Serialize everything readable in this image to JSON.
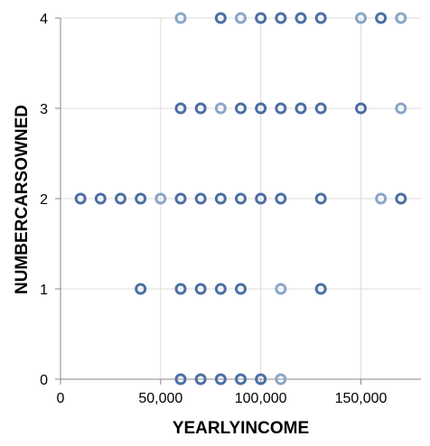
{
  "chart_data": {
    "type": "scatter",
    "xlabel": "YEARLYINCOME",
    "ylabel": "NUMBERCARSOWNED",
    "xlim": [
      0,
      180000
    ],
    "ylim": [
      0,
      4
    ],
    "x_ticks": [
      0,
      50000,
      100000,
      150000
    ],
    "x_tick_labels": [
      "0",
      "50,000",
      "100,000",
      "150,000"
    ],
    "y_ticks": [
      0,
      1,
      2,
      3,
      4
    ],
    "y_tick_labels": [
      "0",
      "1",
      "2",
      "3",
      "4"
    ],
    "grid": true,
    "marker": "open-circle",
    "colors": {
      "dark": "#4c6fa3",
      "light": "#8aa6c8"
    },
    "points": [
      {
        "x": 60000,
        "y": 4,
        "shade": "light"
      },
      {
        "x": 80000,
        "y": 4,
        "shade": "dark"
      },
      {
        "x": 90000,
        "y": 4,
        "shade": "light"
      },
      {
        "x": 100000,
        "y": 4,
        "shade": "dark"
      },
      {
        "x": 110000,
        "y": 4,
        "shade": "dark"
      },
      {
        "x": 120000,
        "y": 4,
        "shade": "dark"
      },
      {
        "x": 130000,
        "y": 4,
        "shade": "dark"
      },
      {
        "x": 150000,
        "y": 4,
        "shade": "light"
      },
      {
        "x": 160000,
        "y": 4,
        "shade": "dark"
      },
      {
        "x": 170000,
        "y": 4,
        "shade": "light"
      },
      {
        "x": 60000,
        "y": 3,
        "shade": "dark"
      },
      {
        "x": 70000,
        "y": 3,
        "shade": "dark"
      },
      {
        "x": 80000,
        "y": 3,
        "shade": "light"
      },
      {
        "x": 90000,
        "y": 3,
        "shade": "dark"
      },
      {
        "x": 100000,
        "y": 3,
        "shade": "dark"
      },
      {
        "x": 110000,
        "y": 3,
        "shade": "dark"
      },
      {
        "x": 120000,
        "y": 3,
        "shade": "dark"
      },
      {
        "x": 130000,
        "y": 3,
        "shade": "dark"
      },
      {
        "x": 150000,
        "y": 3,
        "shade": "dark"
      },
      {
        "x": 170000,
        "y": 3,
        "shade": "light"
      },
      {
        "x": 10000,
        "y": 2,
        "shade": "dark"
      },
      {
        "x": 20000,
        "y": 2,
        "shade": "dark"
      },
      {
        "x": 30000,
        "y": 2,
        "shade": "dark"
      },
      {
        "x": 40000,
        "y": 2,
        "shade": "dark"
      },
      {
        "x": 50000,
        "y": 2,
        "shade": "light"
      },
      {
        "x": 60000,
        "y": 2,
        "shade": "dark"
      },
      {
        "x": 70000,
        "y": 2,
        "shade": "dark"
      },
      {
        "x": 80000,
        "y": 2,
        "shade": "dark"
      },
      {
        "x": 90000,
        "y": 2,
        "shade": "dark"
      },
      {
        "x": 100000,
        "y": 2,
        "shade": "dark"
      },
      {
        "x": 110000,
        "y": 2,
        "shade": "dark"
      },
      {
        "x": 130000,
        "y": 2,
        "shade": "dark"
      },
      {
        "x": 160000,
        "y": 2,
        "shade": "light"
      },
      {
        "x": 170000,
        "y": 2,
        "shade": "dark"
      },
      {
        "x": 40000,
        "y": 1,
        "shade": "dark"
      },
      {
        "x": 60000,
        "y": 1,
        "shade": "dark"
      },
      {
        "x": 70000,
        "y": 1,
        "shade": "dark"
      },
      {
        "x": 80000,
        "y": 1,
        "shade": "dark"
      },
      {
        "x": 90000,
        "y": 1,
        "shade": "dark"
      },
      {
        "x": 110000,
        "y": 1,
        "shade": "light"
      },
      {
        "x": 130000,
        "y": 1,
        "shade": "dark"
      },
      {
        "x": 60000,
        "y": 0,
        "shade": "dark"
      },
      {
        "x": 70000,
        "y": 0,
        "shade": "dark"
      },
      {
        "x": 80000,
        "y": 0,
        "shade": "dark"
      },
      {
        "x": 90000,
        "y": 0,
        "shade": "dark"
      },
      {
        "x": 100000,
        "y": 0,
        "shade": "dark"
      },
      {
        "x": 110000,
        "y": 0,
        "shade": "light"
      }
    ]
  }
}
